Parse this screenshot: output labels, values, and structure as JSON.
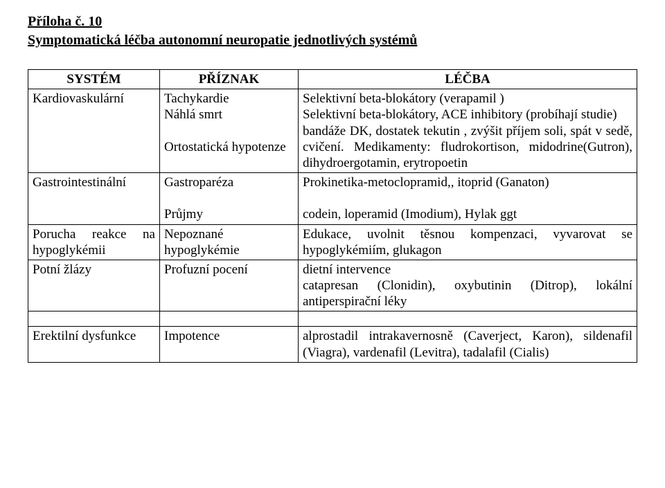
{
  "meta": {
    "font_family": "Times New Roman",
    "page_bg": "#ffffff",
    "text_color": "#000000",
    "heading_fontsize_pt": 15,
    "body_fontsize_pt": 14
  },
  "heading": "Příloha č. 10",
  "subtitle": "Symptomatická léčba autonomní neuropatie jednotlivých systémů",
  "table": {
    "header": {
      "system": "SYSTÉM",
      "symptom": "PŘÍZNAK",
      "treatment": "LÉČBA"
    },
    "rows": [
      {
        "system": "Kardiovaskulární",
        "symptom_html": "Tachykardie<br>Náhlá smrt<br><br>Ortostatická hypotenze",
        "treatment_html": "Selektivní beta-blokátory (verapamil )<br>Selektivní beta-blokátory, ACE inhibitory (probíhají studie)<br>bandáže DK, dostatek tekutin , zvýšit příjem soli, spát v sedě, cvičení. Medikamenty: fludrokortison, midodrine(Gutron), dihydroergotamin, erytropoetin"
      },
      {
        "system": "Gastrointestinální",
        "symptom_html": "Gastroparéza<br><br>Průjmy",
        "treatment_html": "Prokinetika-metoclopramid,, itoprid (Ganaton)<br><br>codein, loperamid (Imodium), Hylak ggt"
      },
      {
        "system": "Porucha reakce na hypoglykémii",
        "symptom_html": "Nepoznané hypoglykémie",
        "treatment_html": "Edukace, uvolnit těsnou kompenzaci, vyvarovat se hypoglykémiím, glukagon"
      },
      {
        "system": "Potní žlázy",
        "symptom_html": "Profuzní pocení",
        "treatment_html": "dietní intervence<br>catapresan (Clonidin), oxybutinin (Ditrop), lokální antiperspirační léky"
      },
      {
        "system": "",
        "symptom_html": "",
        "treatment_html": ""
      },
      {
        "system": "Erektilní dysfunkce",
        "symptom_html": "Impotence",
        "treatment_html": "alprostadil intrakavernosně (Caverject, Karon), sildenafil (Viagra), vardenafil (Levitra), tadalafil (Cialis)"
      }
    ]
  }
}
